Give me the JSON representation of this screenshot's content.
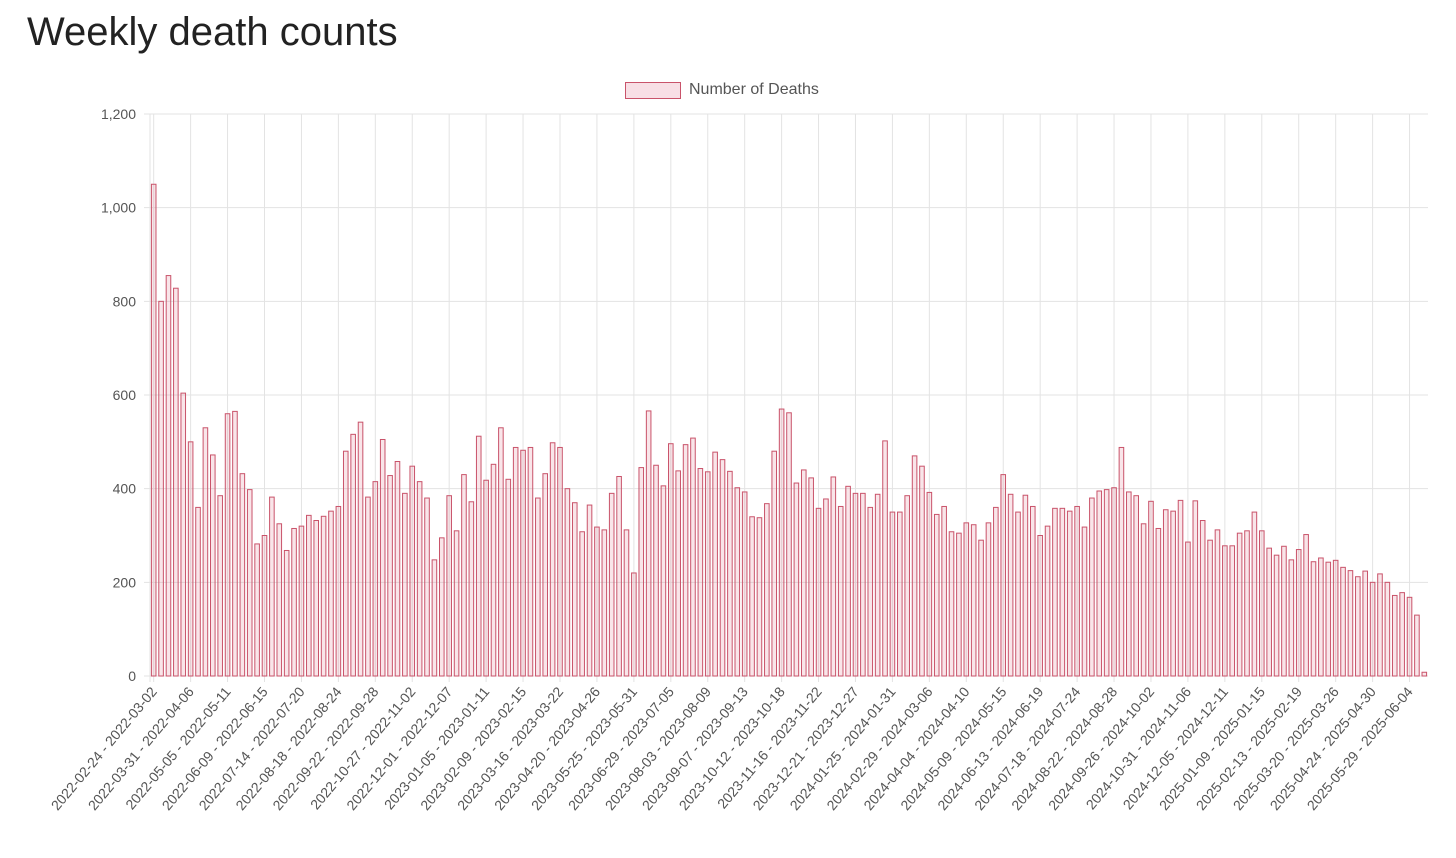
{
  "page": {
    "title": "Weekly death counts"
  },
  "colors": {
    "bar_border": "#c9536a",
    "bar_fill": "rgba(215,80,110,0.15)",
    "grid": "#e3e3e3",
    "axis_text": "#555555"
  },
  "chart_data": {
    "type": "bar",
    "title": "",
    "xlabel": "",
    "ylabel": "",
    "ylim": [
      0,
      1200
    ],
    "yticks": [
      0,
      200,
      400,
      600,
      800,
      1000,
      1200
    ],
    "ytick_labels": [
      "0",
      "200",
      "400",
      "600",
      "800",
      "1,000",
      "1,200"
    ],
    "grid": true,
    "legend": {
      "position": "top-center",
      "entries": [
        "Number of Deaths"
      ]
    },
    "x_tick_labels": [
      "2022-02-24 - 2022-03-02",
      "2022-03-31 - 2022-04-06",
      "2022-05-05 - 2022-05-11",
      "2022-06-09 - 2022-06-15",
      "2022-07-14 - 2022-07-20",
      "2022-08-18 - 2022-08-24",
      "2022-09-22 - 2022-09-28",
      "2022-10-27 - 2022-11-02",
      "2022-12-01 - 2022-12-07",
      "2023-01-05 - 2023-01-11",
      "2023-02-09 - 2023-02-15",
      "2023-03-16 - 2023-03-22",
      "2023-04-20 - 2023-04-26",
      "2023-05-25 - 2023-05-31",
      "2023-06-29 - 2023-07-05",
      "2023-08-03 - 2023-08-09",
      "2023-09-07 - 2023-09-13",
      "2023-10-12 - 2023-10-18",
      "2023-11-16 - 2023-11-22",
      "2023-12-21 - 2023-12-27",
      "2024-01-25 - 2024-01-31",
      "2024-02-29 - 2024-03-06",
      "2024-04-04 - 2024-04-10",
      "2024-05-09 - 2024-05-15",
      "2024-06-13 - 2024-06-19",
      "2024-07-18 - 2024-07-24",
      "2024-08-22 - 2024-08-28",
      "2024-09-26 - 2024-10-02",
      "2024-10-31 - 2024-11-06",
      "2024-12-05 - 2024-12-11",
      "2025-01-09 - 2025-01-15",
      "2025-02-13 - 2025-02-19",
      "2025-03-20 - 2025-03-26",
      "2025-04-24 - 2025-04-30",
      "2025-05-29 - 2025-06-04"
    ],
    "series": [
      {
        "name": "Number of Deaths",
        "values": [
          1050,
          800,
          855,
          828,
          604,
          500,
          360,
          530,
          472,
          385,
          560,
          565,
          432,
          398,
          282,
          300,
          382,
          325,
          268,
          315,
          320,
          343,
          332,
          341,
          352,
          362,
          480,
          516,
          542,
          382,
          415,
          505,
          428,
          458,
          390,
          448,
          415,
          380,
          248,
          295,
          385,
          310,
          430,
          372,
          512,
          418,
          452,
          530,
          420,
          488,
          482,
          488,
          380,
          432,
          498,
          488,
          400,
          370,
          308,
          365,
          318,
          312,
          390,
          426,
          312,
          220,
          445,
          566,
          450,
          406,
          496,
          438,
          494,
          508,
          443,
          436,
          478,
          462,
          437,
          402,
          393,
          340,
          338,
          368,
          480,
          570,
          562,
          412,
          440,
          423,
          358,
          378,
          425,
          362,
          405,
          390,
          390,
          360,
          388,
          502,
          350,
          350,
          385,
          470,
          448,
          392,
          345,
          362,
          308,
          305,
          327,
          323,
          290,
          327,
          360,
          430,
          388,
          350,
          386,
          362,
          300,
          320,
          358,
          358,
          352,
          362,
          318,
          380,
          395,
          398,
          402,
          488,
          393,
          385,
          325,
          373,
          315,
          355,
          352,
          375,
          286,
          374,
          332,
          290,
          312,
          278,
          278,
          305,
          310,
          350,
          310,
          273,
          258,
          277,
          248,
          270,
          302,
          244,
          252,
          243,
          247,
          232,
          225,
          212,
          224,
          200,
          218,
          200,
          172,
          178,
          168,
          130,
          8
        ]
      }
    ]
  }
}
